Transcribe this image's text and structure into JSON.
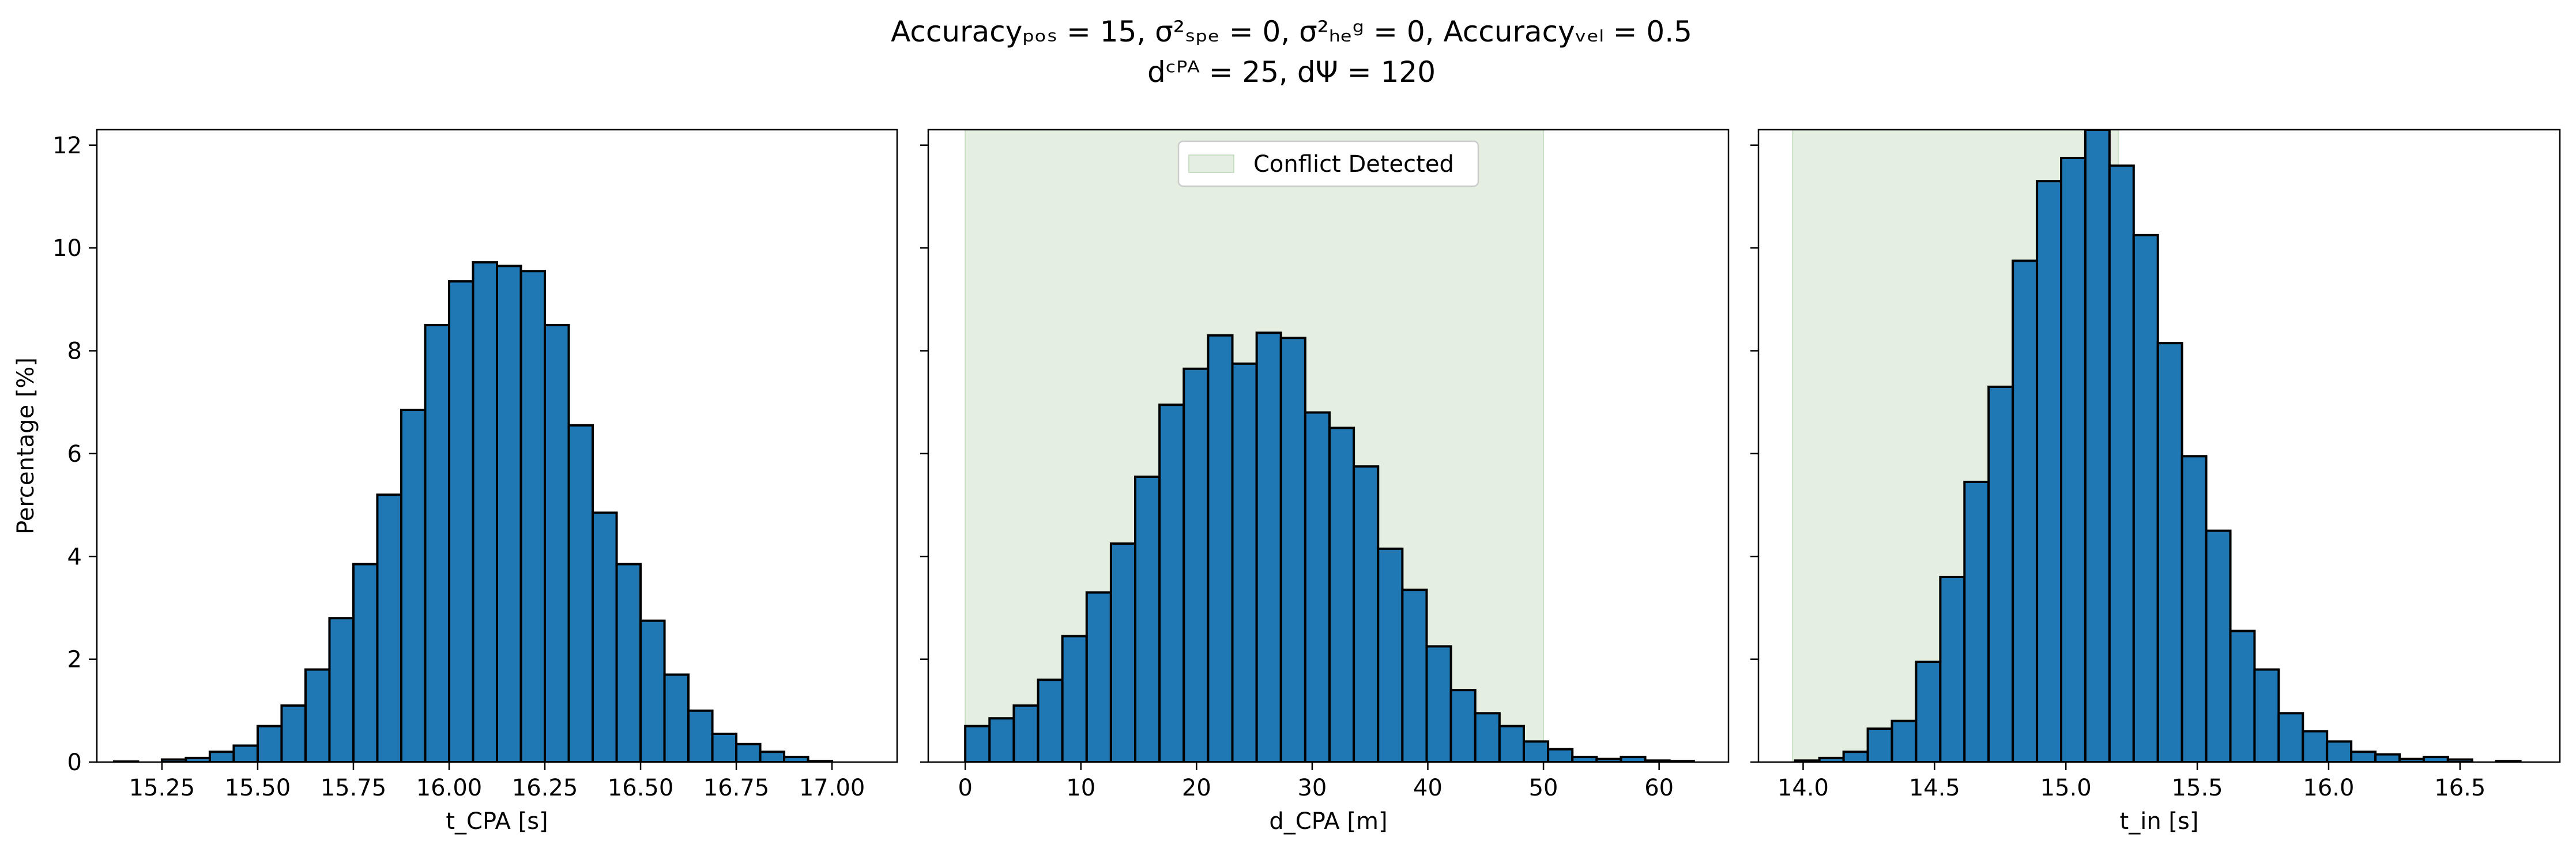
{
  "title_lines": [
    "Accuracyₚₒₛ = 15, σ²ₛₚₑ = 0, σ²ₕₑᵍ = 0, Accuracyᵥₑₗ = 0.5",
    "dᶜᴾᴬ = 25, dΨ = 120"
  ],
  "chart_data": [
    {
      "type": "bar",
      "xlabel": "t_CPA [s]",
      "ylabel": "Percentage [%]",
      "xlim": [
        15.08,
        17.17
      ],
      "ylim": [
        0,
        12.3
      ],
      "xticks": [
        15.25,
        15.5,
        15.75,
        16.0,
        16.25,
        16.5,
        16.75,
        17.0
      ],
      "xtick_labels": [
        "15.25",
        "15.50",
        "15.75",
        "16.00",
        "16.25",
        "16.50",
        "16.75",
        "17.00"
      ],
      "yticks": [
        0,
        2,
        4,
        6,
        8,
        10,
        12
      ],
      "ytick_labels": [
        "0",
        "2",
        "4",
        "6",
        "8",
        "10",
        "12"
      ],
      "bin_start": 15.125,
      "bin_width": 0.0625,
      "values": [
        0.01,
        0.0,
        0.05,
        0.08,
        0.2,
        0.32,
        0.7,
        1.1,
        1.8,
        2.8,
        3.85,
        5.2,
        6.85,
        8.5,
        9.35,
        9.72,
        9.65,
        9.55,
        8.5,
        6.55,
        4.85,
        3.85,
        2.75,
        1.7,
        1.0,
        0.55,
        0.35,
        0.2,
        0.1,
        0.02
      ],
      "shaded_region": null,
      "legend": null
    },
    {
      "type": "bar",
      "xlabel": "d_CPA [m]",
      "ylabel": "",
      "xlim": [
        -3.2,
        66
      ],
      "ylim": [
        0,
        12.3
      ],
      "xticks": [
        0,
        10,
        20,
        30,
        40,
        50,
        60
      ],
      "xtick_labels": [
        "0",
        "10",
        "20",
        "30",
        "40",
        "50",
        "60"
      ],
      "yticks": [
        0,
        2,
        4,
        6,
        8,
        10,
        12
      ],
      "ytick_labels": [
        "",
        "",
        "",
        "",
        "",
        "",
        ""
      ],
      "bin_start": 0,
      "bin_width": 2.1,
      "values": [
        0.7,
        0.85,
        1.1,
        1.6,
        2.45,
        3.3,
        4.25,
        5.55,
        6.95,
        7.65,
        8.3,
        7.75,
        8.35,
        8.25,
        6.8,
        6.5,
        5.75,
        4.15,
        3.35,
        2.25,
        1.4,
        0.95,
        0.7,
        0.4,
        0.25,
        0.1,
        0.06,
        0.1,
        0.03,
        0.02
      ],
      "shaded_region": [
        0,
        50
      ],
      "shade_color": "#e4efe1",
      "legend": {
        "label": "Conflict Detected",
        "position": "upper center"
      }
    },
    {
      "type": "bar",
      "xlabel": "t_in [s]",
      "ylabel": "",
      "xlim": [
        13.83,
        16.88
      ],
      "ylim": [
        0,
        12.3
      ],
      "xticks": [
        14.0,
        14.5,
        15.0,
        15.5,
        16.0,
        16.5
      ],
      "xtick_labels": [
        "14.0",
        "14.5",
        "15.0",
        "15.5",
        "16.0",
        "16.5"
      ],
      "yticks": [
        0,
        2,
        4,
        6,
        8,
        10,
        12
      ],
      "ytick_labels": [
        "",
        "",
        "",
        "",
        "",
        "",
        ""
      ],
      "bin_start": 13.97,
      "bin_width": 0.092,
      "values": [
        0.03,
        0.08,
        0.2,
        0.65,
        0.8,
        1.95,
        3.6,
        5.45,
        7.3,
        9.75,
        11.3,
        11.75,
        12.3,
        11.6,
        10.25,
        8.15,
        5.95,
        4.5,
        2.55,
        1.8,
        0.95,
        0.6,
        0.4,
        0.2,
        0.15,
        0.06,
        0.1,
        0.05,
        0.0,
        0.02
      ],
      "shaded_region": [
        13.96,
        15.2
      ],
      "shade_color": "#e4efe1",
      "legend": null
    }
  ],
  "style": {
    "bar_fill": "#1f77b4",
    "bar_edge": "#000000"
  }
}
